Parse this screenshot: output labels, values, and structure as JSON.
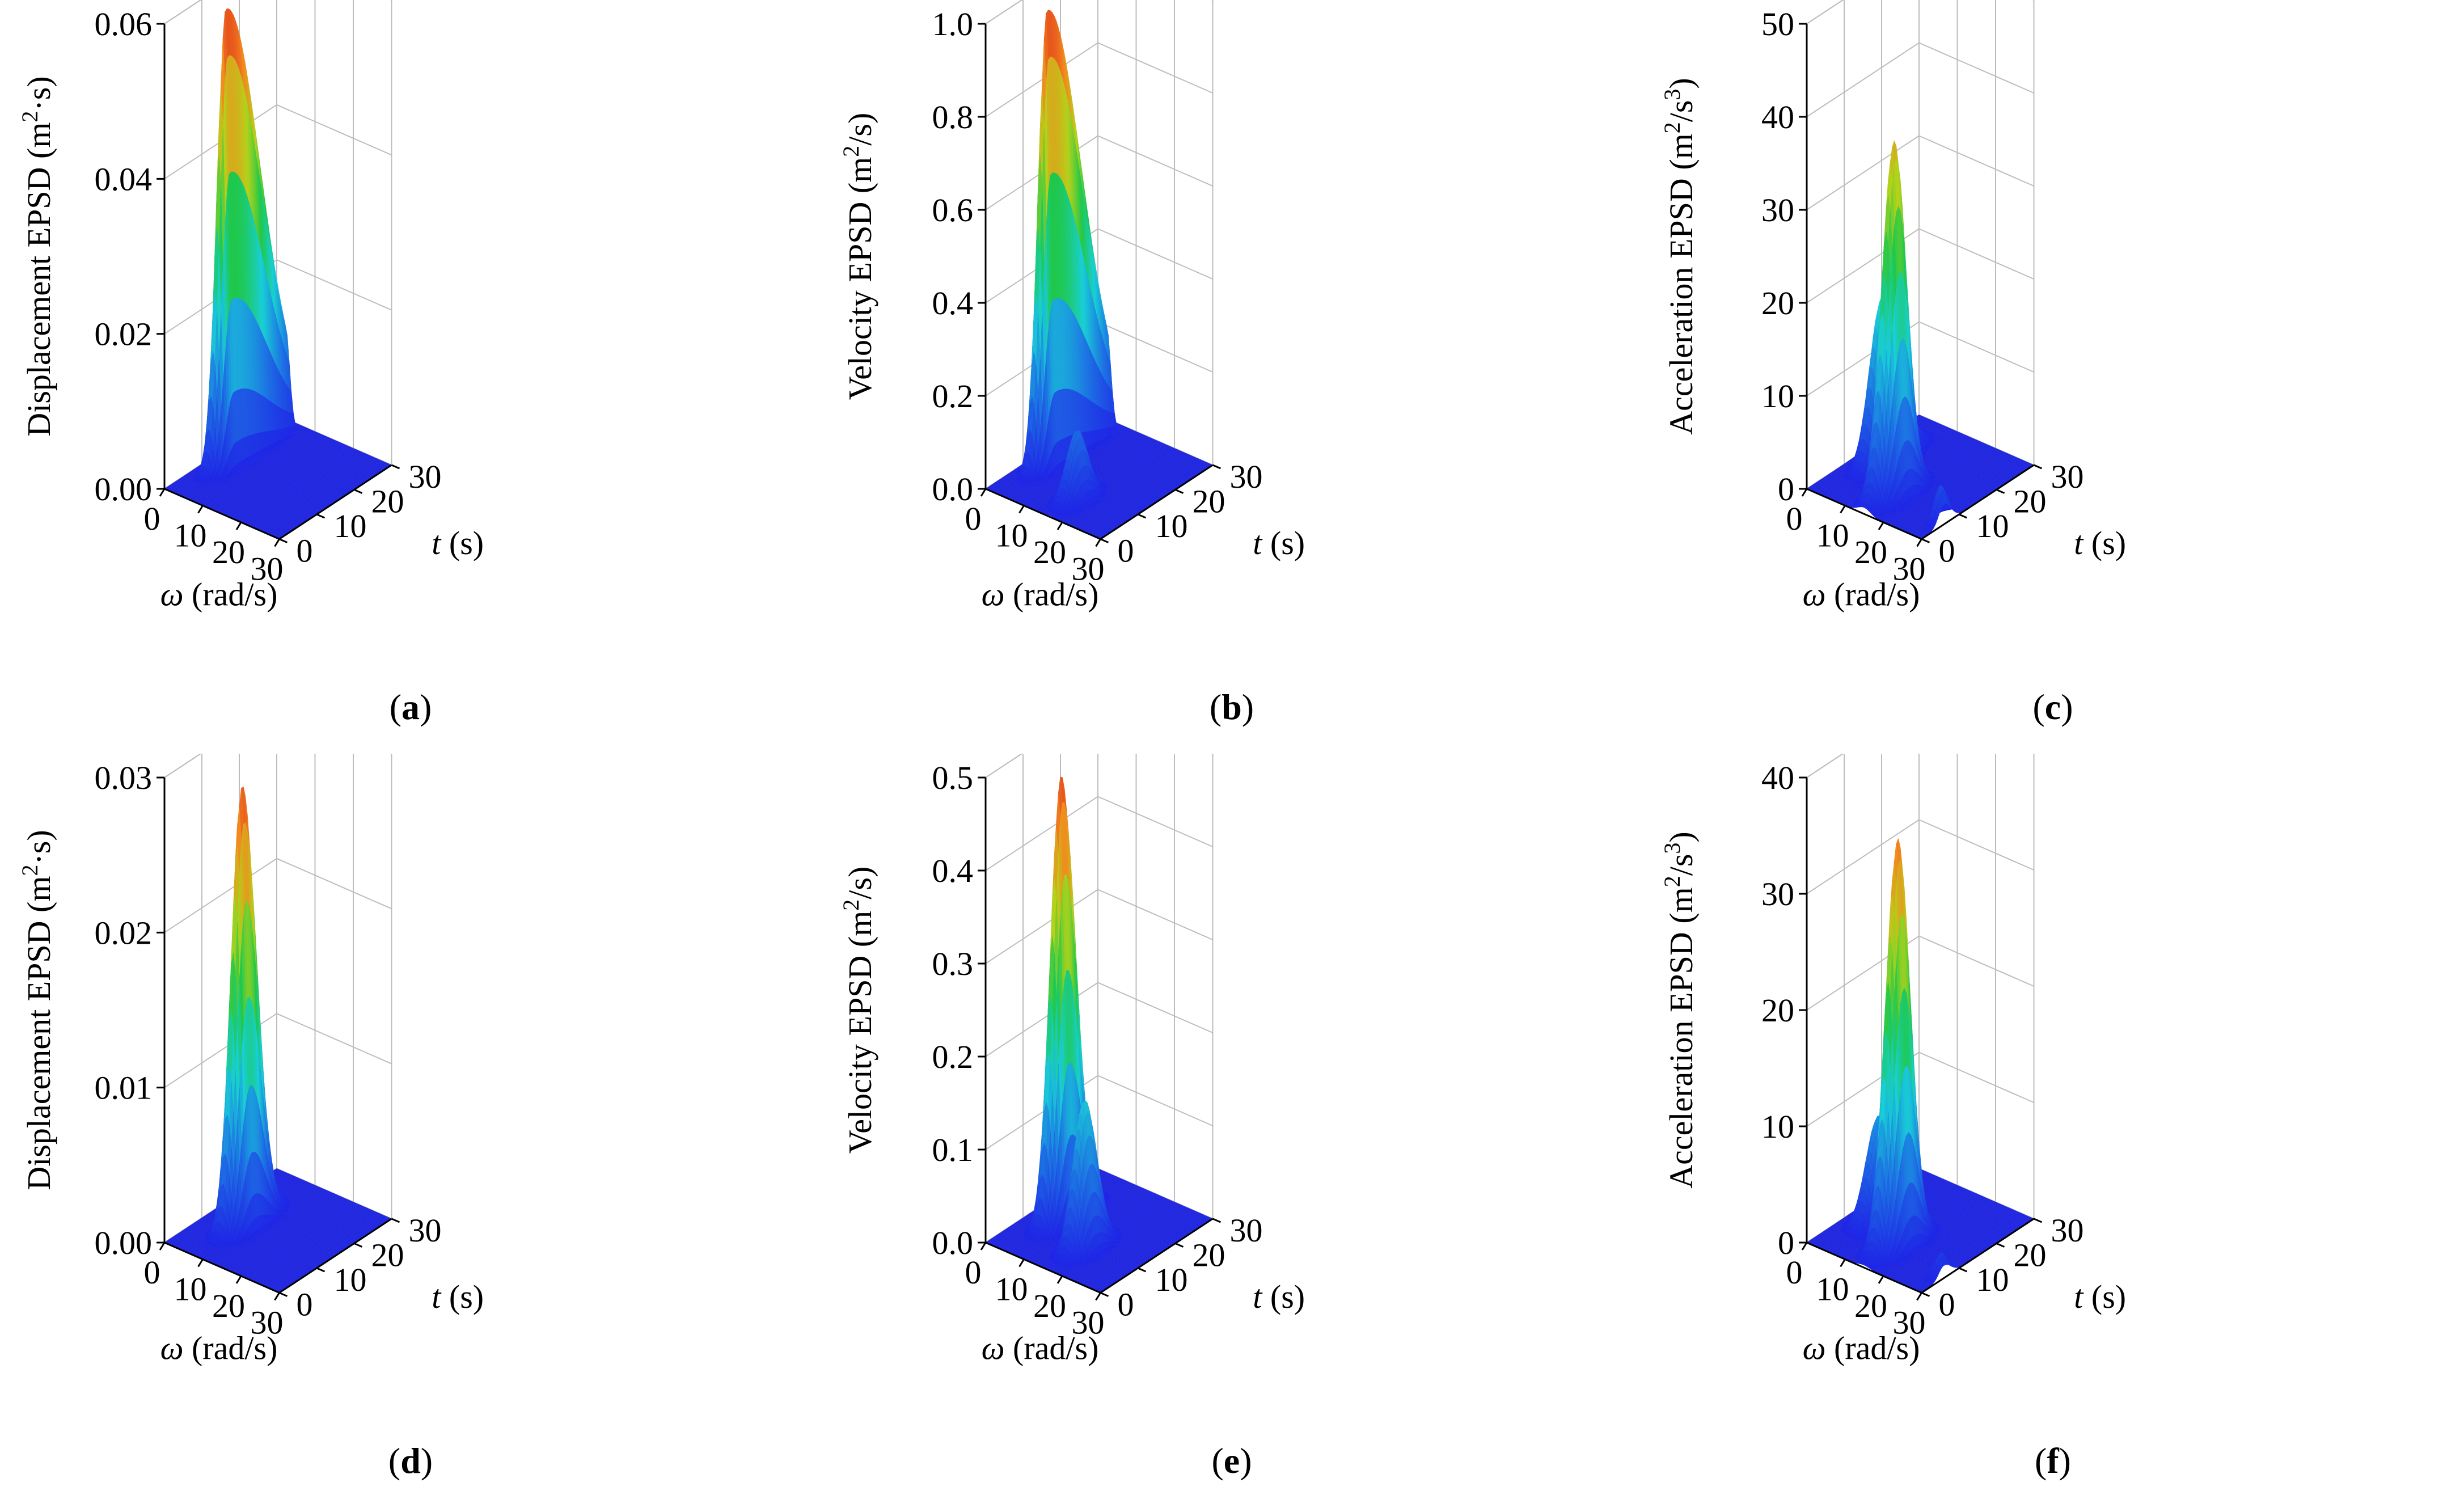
{
  "colors": {
    "floor": "#1e25e6",
    "grid": "#bdbdbd",
    "axis": "#000000",
    "colormap": [
      "#1f24e6",
      "#1d73e3",
      "#19cfd6",
      "#1fc84a",
      "#b4d21a",
      "#f28a1e",
      "#e0321d"
    ]
  },
  "chart_data": [
    {
      "id": "a",
      "caption_letter": "a",
      "type": "surface3d",
      "zlabel_pre": "Displacement EPSD (m",
      "zlabel_sup": "2",
      "zlabel_post": "·s)",
      "xlabel_sym": "ω",
      "xlabel_unit": " (rad/s)",
      "ylabel_sym": "t",
      "ylabel_unit": " (s)",
      "zmax": 0.06,
      "zticks": [
        "0.00",
        "0.02",
        "0.04",
        "0.06"
      ],
      "ztick_values": [
        0,
        0.02,
        0.04,
        0.06
      ],
      "xticks": [
        "0",
        "10",
        "20",
        "30"
      ],
      "xtick_values": [
        0,
        10,
        20,
        30
      ],
      "yticks": [
        "0",
        "10",
        "20",
        "30"
      ],
      "ytick_values": [
        0,
        10,
        20,
        30
      ],
      "peaks": [
        {
          "omega": 4.3,
          "t": 12,
          "height": 0.059,
          "omega_width": 1.6,
          "t_rise": 3,
          "t_decay": 13,
          "cut_t": 28
        }
      ]
    },
    {
      "id": "b",
      "caption_letter": "b",
      "type": "surface3d",
      "zlabel_pre": "Velocity EPSD (m",
      "zlabel_sup": "2",
      "zlabel_post": "/s)",
      "xlabel_sym": "ω",
      "xlabel_unit": " (rad/s)",
      "ylabel_sym": "t",
      "ylabel_unit": " (s)",
      "zmax": 1.0,
      "zticks": [
        "0.0",
        "0.2",
        "0.4",
        "0.6",
        "0.8",
        "1.0"
      ],
      "ztick_values": [
        0,
        0.2,
        0.4,
        0.6,
        0.8,
        1.0
      ],
      "xticks": [
        "0",
        "10",
        "20",
        "30"
      ],
      "xtick_values": [
        0,
        10,
        20,
        30
      ],
      "yticks": [
        "0",
        "10",
        "20",
        "30"
      ],
      "ytick_values": [
        0,
        10,
        20,
        30
      ],
      "peaks": [
        {
          "omega": 4.3,
          "t": 12,
          "height": 0.98,
          "omega_width": 1.6,
          "t_rise": 3,
          "t_decay": 13,
          "cut_t": 28
        },
        {
          "omega": 17,
          "t": 7,
          "height": 0.15,
          "omega_width": 2.2,
          "t_rise": 3.5,
          "t_decay": 3.5
        }
      ]
    },
    {
      "id": "c",
      "caption_letter": "c",
      "type": "surface3d",
      "zlabel_pre": "Acceleration EPSD (m",
      "zlabel_sup": "2",
      "zlabel_post": "/s",
      "zlabel_sup2": "3",
      "zlabel_post2": ")",
      "xlabel_sym": "ω",
      "xlabel_unit": " (rad/s)",
      "ylabel_sym": "t",
      "ylabel_unit": " (s)",
      "zmax": 50,
      "zticks": [
        "0",
        "10",
        "20",
        "30",
        "40",
        "50"
      ],
      "ztick_values": [
        0,
        10,
        20,
        30,
        40,
        50
      ],
      "xticks": [
        "0",
        "10",
        "20",
        "30"
      ],
      "xtick_values": [
        0,
        10,
        20,
        30
      ],
      "yticks": [
        "0",
        "10",
        "20",
        "30"
      ],
      "ytick_values": [
        0,
        10,
        20,
        30
      ],
      "peaks": [
        {
          "omega": 6,
          "t": 14,
          "height": 18,
          "omega_width": 2.5,
          "t_rise": 4,
          "t_decay": 6,
          "cut_t": 28
        },
        {
          "omega": 15,
          "t": 8,
          "height": 38,
          "omega_width": 2.4,
          "t_rise": 4,
          "t_decay": 4
        },
        {
          "omega": 29,
          "t": 6,
          "height": 4,
          "omega_width": 1.3,
          "t_rise": 2,
          "t_decay": 2.5
        }
      ]
    },
    {
      "id": "d",
      "caption_letter": "d",
      "type": "surface3d",
      "zlabel_pre": "Displacement EPSD (m",
      "zlabel_sup": "2",
      "zlabel_post": "·s)",
      "xlabel_sym": "ω",
      "xlabel_unit": " (rad/s)",
      "ylabel_sym": "t",
      "ylabel_unit": " (s)",
      "zmax": 0.03,
      "zticks": [
        "0.00",
        "0.01",
        "0.02",
        "0.03"
      ],
      "ztick_values": [
        0,
        0.01,
        0.02,
        0.03
      ],
      "xticks": [
        "0",
        "10",
        "20",
        "30"
      ],
      "xtick_values": [
        0,
        10,
        20,
        30
      ],
      "yticks": [
        "0",
        "10",
        "20",
        "30"
      ],
      "ytick_values": [
        0,
        10,
        20,
        30
      ],
      "peaks": [
        {
          "omega": 8.5,
          "t": 12,
          "height": 0.0285,
          "omega_width": 2.1,
          "t_rise": 3.5,
          "t_decay": 5
        }
      ]
    },
    {
      "id": "e",
      "caption_letter": "e",
      "type": "surface3d",
      "zlabel_pre": "Velocity EPSD (m",
      "zlabel_sup": "2",
      "zlabel_post": "/s)",
      "xlabel_sym": "ω",
      "xlabel_unit": " (rad/s)",
      "ylabel_sym": "t",
      "ylabel_unit": " (s)",
      "zmax": 0.5,
      "zticks": [
        "0.0",
        "0.1",
        "0.2",
        "0.3",
        "0.4",
        "0.5"
      ],
      "ztick_values": [
        0,
        0.1,
        0.2,
        0.3,
        0.4,
        0.5
      ],
      "xticks": [
        "0",
        "10",
        "20",
        "30"
      ],
      "xtick_values": [
        0,
        10,
        20,
        30
      ],
      "yticks": [
        "0",
        "10",
        "20",
        "30"
      ],
      "ytick_values": [
        0,
        10,
        20,
        30
      ],
      "peaks": [
        {
          "omega": 7,
          "t": 13,
          "height": 0.48,
          "omega_width": 2.1,
          "t_rise": 3.5,
          "t_decay": 5
        },
        {
          "omega": 17,
          "t": 9,
          "height": 0.16,
          "omega_width": 2.4,
          "t_rise": 3.5,
          "t_decay": 4
        }
      ]
    },
    {
      "id": "f",
      "caption_letter": "f",
      "type": "surface3d",
      "zlabel_pre": "Acceleration EPSD (m",
      "zlabel_sup": "2",
      "zlabel_post": "/s",
      "zlabel_sup2": "3",
      "zlabel_post2": ")",
      "xlabel_sym": "ω",
      "xlabel_unit": " (rad/s)",
      "ylabel_sym": "t",
      "ylabel_unit": " (s)",
      "zmax": 40,
      "zticks": [
        "0",
        "10",
        "20",
        "30",
        "40"
      ],
      "ztick_values": [
        0,
        10,
        20,
        30,
        40
      ],
      "xticks": [
        "0",
        "10",
        "20",
        "30"
      ],
      "xtick_values": [
        0,
        10,
        20,
        30
      ],
      "yticks": [
        "0",
        "10",
        "20",
        "30"
      ],
      "ytick_values": [
        0,
        10,
        20,
        30
      ],
      "peaks": [
        {
          "omega": 6,
          "t": 13,
          "height": 9,
          "omega_width": 2.5,
          "t_rise": 4,
          "t_decay": 5
        },
        {
          "omega": 15,
          "t": 9,
          "height": 35,
          "omega_width": 2.4,
          "t_rise": 4,
          "t_decay": 4
        },
        {
          "omega": 29,
          "t": 6,
          "height": 2,
          "omega_width": 1.3,
          "t_rise": 2,
          "t_decay": 2.5
        }
      ]
    }
  ]
}
